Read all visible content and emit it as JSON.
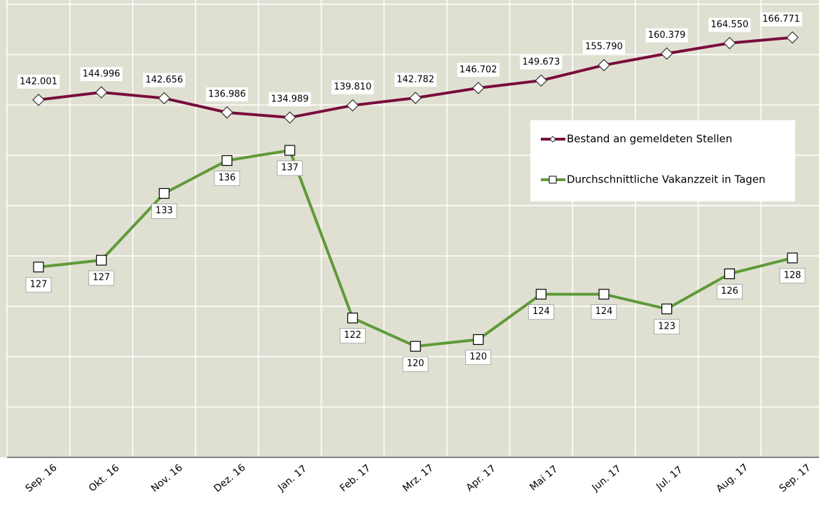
{
  "chart_data": {
    "type": "line",
    "categories": [
      "Sep. 16",
      "Okt. 16",
      "Nov. 16",
      "Dez. 16",
      "Jan. 17",
      "Feb. 17",
      "Mrz. 17",
      "Apr. 17",
      "Mai 17",
      "Jun. 17",
      "Jul. 17",
      "Aug. 17",
      "Sep. 17"
    ],
    "series": [
      {
        "name": "Bestand an gemeldeten Stellen",
        "color": "#7a0c3c",
        "values": [
          142001,
          144996,
          142656,
          136986,
          134989,
          139810,
          142782,
          146702,
          149673,
          155790,
          160379,
          164550,
          166771
        ],
        "value_labels": [
          "142.001",
          "144.996",
          "142.656",
          "136.986",
          "134.989",
          "139.810",
          "142.782",
          "146.702",
          "149.673",
          "155.790",
          "160.379",
          "164.550",
          "166.771"
        ]
      },
      {
        "name": "Durchschnittliche Vakanzzeit in Tagen",
        "color": "#5f9a3a",
        "axis": "y2",
        "values": [
          126.8,
          127.4,
          133.3,
          136.2,
          137.1,
          122.3,
          119.8,
          120.4,
          124.4,
          124.4,
          123.1,
          126.2,
          127.6
        ],
        "value_labels": [
          "127",
          "127",
          "133",
          "136",
          "137",
          "122",
          "120",
          "120",
          "124",
          "124",
          "123",
          "126",
          "128"
        ]
      }
    ],
    "ylim": [
      0,
      180000
    ],
    "yticks": [
      0,
      20000,
      40000,
      60000,
      80000,
      100000,
      120000,
      140000,
      160000,
      180000
    ],
    "y2lim": [
      110,
      150
    ],
    "grid": true,
    "legend": "right"
  }
}
